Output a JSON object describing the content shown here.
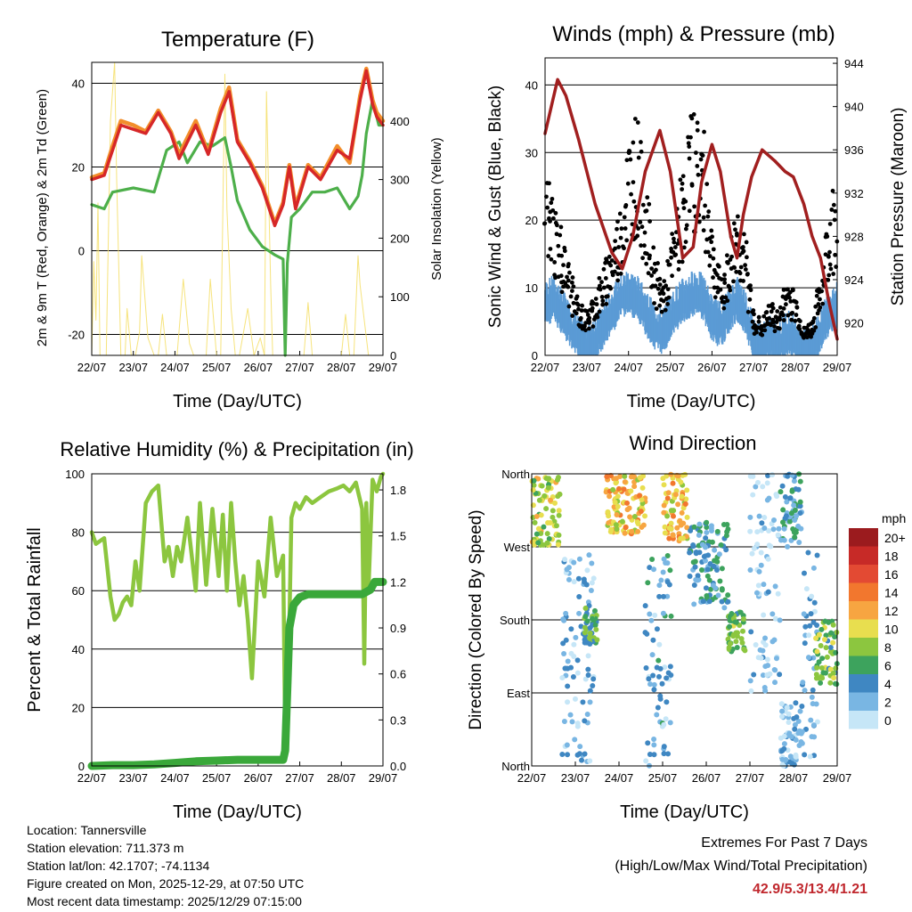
{
  "colors": {
    "temp2m": "#d62728",
    "temp9m": "#f28e2b",
    "dewpoint": "#4daf4a",
    "solar": "#f5e06e",
    "wind": "#5b9bd5",
    "gust": "#000000",
    "pressure": "#a11f1f",
    "rh": "#8cc63f",
    "precip": "#3aa83a",
    "extremes": "#c0272d"
  },
  "chart_data": [
    {
      "id": "temperature",
      "type": "line",
      "title": "Temperature (F)",
      "xlabel": "Time (Day/UTC)",
      "ylabel": "2m & 9m T (Red, Orange) & 2m Td (Green)",
      "y2label": "Solar Insolation (Yellow)",
      "xticks": [
        "22/07",
        "23/07",
        "24/07",
        "25/07",
        "26/07",
        "27/07",
        "28/07",
        "29/07"
      ],
      "xlim": [
        0,
        7
      ],
      "ylim": [
        -25,
        45
      ],
      "yticks": [
        -20,
        0,
        20,
        40
      ],
      "y2lim": [
        0,
        500
      ],
      "y2ticks": [
        0,
        100,
        200,
        300,
        400
      ],
      "series": [
        {
          "name": "2m T",
          "axis": "left",
          "color_key": "temp2m",
          "x": [
            0,
            0.3,
            0.5,
            0.7,
            1,
            1.3,
            1.6,
            1.9,
            2.1,
            2.5,
            2.8,
            3.1,
            3.3,
            3.5,
            3.8,
            4.1,
            4.4,
            4.6,
            4.75,
            4.9,
            5.2,
            5.5,
            5.9,
            6.2,
            6.45,
            6.6,
            6.75,
            6.85,
            7
          ],
          "y": [
            17,
            18,
            24,
            30,
            29,
            28,
            33,
            28,
            22,
            30,
            23,
            33,
            38,
            26,
            21,
            15,
            6,
            11,
            20,
            10,
            20,
            17,
            24,
            22,
            36,
            43,
            35,
            32,
            30
          ]
        },
        {
          "name": "9m T",
          "axis": "left",
          "color_key": "temp9m",
          "x": [
            0,
            0.3,
            0.5,
            0.7,
            1,
            1.3,
            1.6,
            1.9,
            2.1,
            2.5,
            2.8,
            3.1,
            3.3,
            3.5,
            3.8,
            4.1,
            4.4,
            4.6,
            4.75,
            4.9,
            5.2,
            5.5,
            5.9,
            6.2,
            6.45,
            6.6,
            6.75,
            6.85,
            7
          ],
          "y": [
            17.5,
            18.5,
            25,
            31,
            30,
            28.5,
            33.5,
            28.5,
            23,
            31,
            23.5,
            34,
            39,
            26.5,
            21.5,
            15.5,
            6.5,
            11.5,
            20.5,
            10.5,
            20.5,
            17.5,
            25,
            21,
            37,
            43.5,
            36,
            33,
            31
          ]
        },
        {
          "name": "2m Td",
          "axis": "left",
          "color_key": "dewpoint",
          "x": [
            0,
            0.3,
            0.5,
            1,
            1.5,
            1.8,
            2.1,
            2.3,
            2.6,
            2.9,
            3.2,
            3.35,
            3.5,
            3.8,
            4.1,
            4.4,
            4.6,
            4.65,
            4.7,
            4.8,
            5,
            5.3,
            5.6,
            5.9,
            6.2,
            6.4,
            6.5,
            6.6,
            6.75,
            6.9,
            7
          ],
          "y": [
            11,
            10,
            14,
            15,
            14,
            24,
            26,
            21,
            26,
            25,
            27,
            20,
            12,
            5,
            1,
            -1,
            -2,
            -25,
            -3,
            8,
            10,
            14,
            14,
            15,
            10,
            13,
            18,
            28,
            36,
            30,
            30
          ]
        },
        {
          "name": "Solar",
          "axis": "right",
          "color_key": "solar",
          "x": [
            0,
            0.05,
            0.1,
            0.15,
            0.2,
            0.35,
            0.45,
            0.55,
            0.6,
            0.7,
            0.8,
            0.85,
            0.95,
            1.05,
            1.15,
            1.2,
            1.35,
            1.5,
            1.6,
            1.7,
            1.8,
            1.95,
            2.05,
            2.2,
            2.35,
            2.45,
            2.6,
            2.75,
            2.85,
            3,
            3.1,
            3.2,
            3.25,
            3.35,
            3.45,
            3.55,
            3.65,
            3.75,
            3.9,
            4.05,
            4.15,
            4.2,
            4.3,
            4.35,
            4.5,
            4.6,
            4.7,
            4.8,
            5,
            5.1,
            5.2,
            5.3,
            5.45,
            5.55,
            5.7,
            5.85,
            6,
            6.1,
            6.2,
            6.3,
            6.4,
            6.45,
            6.55,
            6.65,
            6.7,
            6.85,
            7
          ],
          "y": [
            0,
            160,
            60,
            260,
            0,
            0,
            400,
            500,
            300,
            0,
            0,
            80,
            0,
            0,
            40,
            170,
            30,
            0,
            0,
            70,
            0,
            0,
            0,
            130,
            20,
            0,
            0,
            0,
            130,
            0,
            0,
            480,
            250,
            80,
            0,
            0,
            40,
            80,
            0,
            30,
            0,
            450,
            120,
            0,
            0,
            0,
            0,
            0,
            0,
            0,
            90,
            0,
            0,
            0,
            0,
            0,
            0,
            70,
            0,
            0,
            170,
            120,
            60,
            0,
            0,
            0,
            0
          ]
        }
      ]
    },
    {
      "id": "winds",
      "type": "line",
      "title": "Winds (mph) & Pressure (mb)",
      "xlabel": "Time (Day/UTC)",
      "ylabel": "Sonic Wind & Gust (Blue, Black)",
      "y2label": "Station Pressure (Maroon)",
      "xticks": [
        "22/07",
        "23/07",
        "24/07",
        "25/07",
        "26/07",
        "27/07",
        "28/07",
        "29/07"
      ],
      "xlim": [
        0,
        7
      ],
      "ylim": [
        0,
        44
      ],
      "yticks": [
        0,
        10,
        20,
        30,
        40
      ],
      "y2lim": [
        917,
        944.5
      ],
      "y2ticks": [
        920,
        924,
        928,
        932,
        936,
        940,
        944
      ],
      "series": [
        {
          "name": "Sonic Wind",
          "axis": "left",
          "color_key": "wind",
          "x": [
            0,
            0.2,
            0.4,
            0.6,
            0.8,
            1,
            1.2,
            1.4,
            1.6,
            1.8,
            2,
            2.2,
            2.4,
            2.6,
            2.8,
            3,
            3.2,
            3.4,
            3.6,
            3.8,
            4,
            4.2,
            4.4,
            4.6,
            4.8,
            5,
            5.2,
            5.4,
            5.6,
            5.8,
            6,
            6.2,
            6.4,
            6.6,
            6.8,
            7
          ],
          "y": [
            8,
            9,
            7,
            5,
            3,
            2,
            3,
            5,
            7,
            9,
            10,
            9,
            7,
            5,
            4,
            6,
            8,
            9,
            10,
            9,
            6,
            5,
            7,
            9,
            7,
            3,
            2,
            3,
            2,
            4,
            3,
            1,
            2,
            4,
            7,
            8
          ]
        },
        {
          "name": "Gust",
          "axis": "left",
          "color_key": "gust",
          "x": [
            0,
            0.2,
            0.4,
            0.6,
            0.8,
            1,
            1.2,
            1.4,
            1.6,
            1.8,
            2,
            2.2,
            2.4,
            2.6,
            2.8,
            3,
            3.2,
            3.4,
            3.6,
            3.8,
            4,
            4.2,
            4.4,
            4.6,
            4.8,
            5,
            5.2,
            5.4,
            5.6,
            5.8,
            6,
            6.2,
            6.4,
            6.6,
            6.8,
            7
          ],
          "y": [
            21,
            18,
            14,
            10,
            6,
            5,
            7,
            10,
            13,
            17,
            25,
            27,
            20,
            12,
            8,
            12,
            18,
            25,
            28,
            25,
            15,
            9,
            12,
            18,
            13,
            5,
            4,
            6,
            5,
            9,
            7,
            3,
            4,
            9,
            17,
            20
          ]
        },
        {
          "name": "Station Pressure",
          "axis": "right",
          "color_key": "pressure",
          "x": [
            0,
            0.15,
            0.3,
            0.5,
            0.8,
            1.2,
            1.6,
            1.85,
            2.1,
            2.4,
            2.75,
            3,
            3.3,
            3.55,
            3.75,
            4,
            4.2,
            4.45,
            4.6,
            4.75,
            4.95,
            5.2,
            5.5,
            5.75,
            5.95,
            6.2,
            6.4,
            6.6,
            6.8,
            7
          ],
          "y": [
            937.5,
            940,
            942.5,
            941,
            937,
            931,
            926.5,
            925,
            928,
            934,
            937.8,
            934,
            926,
            927,
            933,
            936.5,
            934,
            928,
            926,
            930,
            933.5,
            936,
            935,
            934,
            933.5,
            931,
            928,
            926,
            922,
            918.5
          ]
        }
      ]
    },
    {
      "id": "humidity",
      "type": "line",
      "title": "Relative Humidity (%) & Precipitation (in)",
      "xlabel": "Time (Day/UTC)",
      "ylabel": "Percent & Total Rainfall",
      "xticks": [
        "22/07",
        "23/07",
        "24/07",
        "25/07",
        "26/07",
        "27/07",
        "28/07",
        "29/07"
      ],
      "xlim": [
        0,
        7
      ],
      "ylim": [
        0,
        100
      ],
      "yticks": [
        0,
        20,
        40,
        60,
        80,
        100
      ],
      "y2lim": [
        0,
        1.905
      ],
      "y2ticks": [
        "0.0",
        "0.3",
        "0.6",
        "0.9",
        "1.2",
        "1.5",
        "1.8"
      ],
      "series": [
        {
          "name": "Relative Humidity",
          "axis": "left",
          "color_key": "rh",
          "x": [
            0,
            0.1,
            0.3,
            0.45,
            0.55,
            0.65,
            0.75,
            0.85,
            0.95,
            1.05,
            1.15,
            1.3,
            1.45,
            1.6,
            1.75,
            1.85,
            1.95,
            2.05,
            2.15,
            2.3,
            2.5,
            2.6,
            2.75,
            2.9,
            3.05,
            3.15,
            3.25,
            3.35,
            3.45,
            3.55,
            3.65,
            3.75,
            3.85,
            4,
            4.15,
            4.3,
            4.45,
            4.6,
            4.65,
            4.7,
            4.8,
            4.9,
            5,
            5.15,
            5.3,
            5.5,
            5.7,
            5.9,
            6.05,
            6.2,
            6.35,
            6.5,
            6.55,
            6.6,
            6.65,
            6.75,
            6.85,
            6.95,
            7
          ],
          "y": [
            80,
            76,
            78,
            58,
            50,
            52,
            56,
            58,
            55,
            70,
            60,
            90,
            94,
            96,
            70,
            75,
            65,
            75,
            70,
            85,
            60,
            90,
            62,
            88,
            65,
            86,
            60,
            90,
            70,
            55,
            65,
            50,
            30,
            70,
            58,
            85,
            65,
            72,
            10,
            12,
            85,
            90,
            88,
            92,
            90,
            92,
            94,
            95,
            96,
            94,
            97,
            88,
            35,
            90,
            60,
            98,
            94,
            99,
            100
          ]
        },
        {
          "name": "Total Precipitation",
          "axis": "right",
          "color_key": "precip",
          "x": [
            0,
            0.5,
            1,
            1.5,
            2,
            2.5,
            3,
            3.5,
            4,
            4.4,
            4.6,
            4.65,
            4.7,
            4.75,
            4.85,
            5,
            5.2,
            5.5,
            6,
            6.5,
            6.7,
            6.8,
            7
          ],
          "y": [
            0,
            0.005,
            0.005,
            0.01,
            0.02,
            0.03,
            0.035,
            0.04,
            0.04,
            0.04,
            0.04,
            0.1,
            0.5,
            0.9,
            1.05,
            1.1,
            1.12,
            1.12,
            1.12,
            1.12,
            1.15,
            1.2,
            1.2
          ]
        }
      ]
    },
    {
      "id": "direction",
      "type": "scatter",
      "title": "Wind Direction",
      "xlabel": "Time (Day/UTC)",
      "ylabel": "Direction (Colored By Speed)",
      "xticks": [
        "22/07",
        "23/07",
        "24/07",
        "25/07",
        "26/07",
        "27/07",
        "28/07",
        "29/07"
      ],
      "xlim": [
        0,
        7
      ],
      "ylim": [
        0,
        360
      ],
      "ytick_values": [
        0,
        90,
        180,
        270,
        360
      ],
      "ytick_labels": [
        "North",
        "East",
        "South",
        "West",
        "North"
      ],
      "colorbar": {
        "title": "mph",
        "labels": [
          "20+",
          "18",
          "16",
          "14",
          "12",
          "10",
          "8",
          "6",
          "4",
          "2",
          "0"
        ],
        "colors": [
          "#9b1b1e",
          "#c72a27",
          "#e34a33",
          "#f2772e",
          "#f7a541",
          "#e8de4f",
          "#8cc63f",
          "#3da35d",
          "#3f87c2",
          "#79b6e3",
          "#c6e6f7"
        ]
      },
      "clusters": [
        {
          "x0": 0.0,
          "x1": 0.65,
          "dmin": 270,
          "dmax": 360,
          "speed": 9
        },
        {
          "x0": 0.7,
          "x1": 1.45,
          "dmin": 5,
          "dmax": 265,
          "speed": 2
        },
        {
          "x0": 1.2,
          "x1": 1.5,
          "dmin": 150,
          "dmax": 195,
          "speed": 6
        },
        {
          "x0": 1.7,
          "x1": 2.6,
          "dmin": 285,
          "dmax": 360,
          "speed": 11
        },
        {
          "x0": 2.6,
          "x1": 3.2,
          "dmin": 0,
          "dmax": 260,
          "speed": 3
        },
        {
          "x0": 3.0,
          "x1": 3.6,
          "dmin": 275,
          "dmax": 360,
          "speed": 11
        },
        {
          "x0": 3.6,
          "x1": 4.5,
          "dmin": 195,
          "dmax": 300,
          "speed": 4
        },
        {
          "x0": 4.5,
          "x1": 4.9,
          "dmin": 140,
          "dmax": 190,
          "speed": 7
        },
        {
          "x0": 5.0,
          "x1": 5.7,
          "dmin": 90,
          "dmax": 360,
          "speed": 1
        },
        {
          "x0": 5.7,
          "x1": 6.2,
          "dmin": 270,
          "dmax": 360,
          "speed": 4
        },
        {
          "x0": 5.7,
          "x1": 6.2,
          "dmin": 0,
          "dmax": 80,
          "speed": 2
        },
        {
          "x0": 6.2,
          "x1": 6.55,
          "dmin": 10,
          "dmax": 270,
          "speed": 2
        },
        {
          "x0": 6.5,
          "x1": 7.0,
          "dmin": 100,
          "dmax": 180,
          "speed": 7
        }
      ]
    }
  ],
  "info": {
    "location": "Location: Tannersville",
    "elevation": "Station elevation: 711.373 m",
    "latlon": "Station lat/lon: 42.1707; -74.1134",
    "created": "Figure created on Mon, 2025-12-29, at 07:50 UTC",
    "recent": "Most recent data timestamp: 2025/12/29 07:15:00"
  },
  "extremes": {
    "title": "Extremes For Past 7 Days",
    "subtitle": "(High/Low/Max Wind/Total Precipitation)",
    "value": "42.9/5.3/13.4/1.21"
  }
}
